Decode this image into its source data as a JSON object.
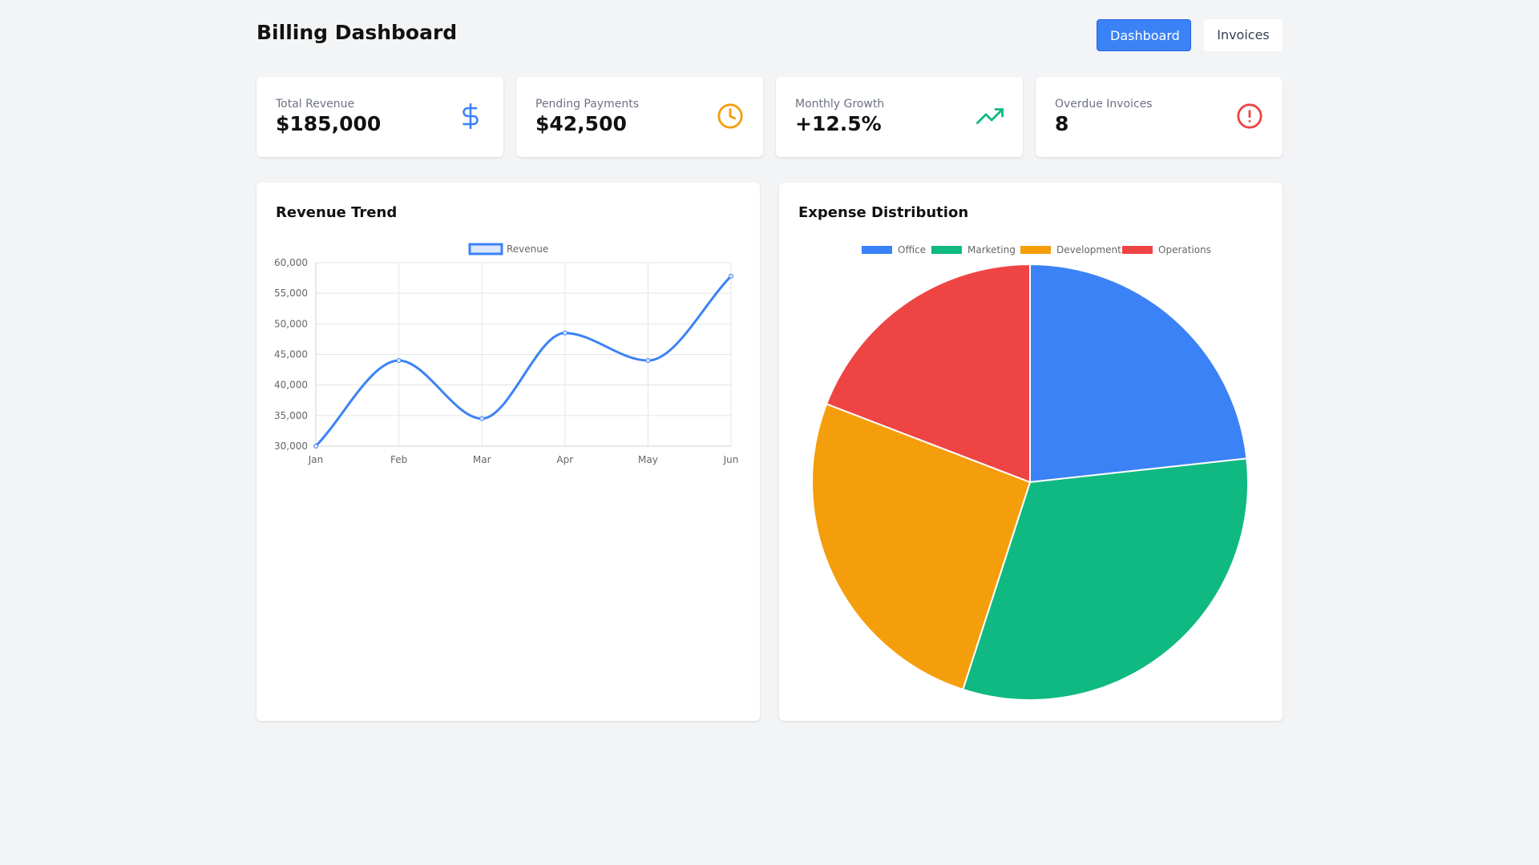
{
  "header": {
    "title": "Billing Dashboard",
    "nav": [
      {
        "label": "Dashboard",
        "active": true
      },
      {
        "label": "Invoices",
        "active": false
      }
    ]
  },
  "stats": [
    {
      "label": "Total Revenue",
      "value": "$185,000",
      "icon": "dollar-icon",
      "color": "#3b82f6"
    },
    {
      "label": "Pending Payments",
      "value": "$42,500",
      "icon": "clock-icon",
      "color": "#f59e0b"
    },
    {
      "label": "Monthly Growth",
      "value": "+12.5%",
      "icon": "trending-up-icon",
      "color": "#10b981"
    },
    {
      "label": "Overdue Invoices",
      "value": "8",
      "icon": "alert-circle-icon",
      "color": "#ef4444"
    }
  ],
  "charts": {
    "revenue_title": "Revenue Trend",
    "expense_title": "Expense Distribution"
  },
  "chart_data": [
    {
      "type": "line",
      "title": "Revenue Trend",
      "categories": [
        "Jan",
        "Feb",
        "Mar",
        "Apr",
        "May",
        "Jun"
      ],
      "series": [
        {
          "name": "Revenue",
          "values": [
            30000,
            44000,
            34500,
            48500,
            44000,
            57800
          ],
          "color": "#3b82f6"
        }
      ],
      "ylim": [
        30000,
        60000
      ],
      "yticks": [
        "30,000",
        "35,000",
        "40,000",
        "45,000",
        "50,000",
        "55,000",
        "60,000"
      ],
      "grid": true,
      "legend": "top"
    },
    {
      "type": "pie",
      "title": "Expense Distribution",
      "categories": [
        "Office",
        "Marketing",
        "Development",
        "Operations"
      ],
      "values": [
        21.5,
        29.3,
        23.9,
        17.7
      ],
      "colors": [
        "#3b82f6",
        "#10b981",
        "#f59e0b",
        "#ef4444"
      ],
      "legend": "top"
    }
  ]
}
